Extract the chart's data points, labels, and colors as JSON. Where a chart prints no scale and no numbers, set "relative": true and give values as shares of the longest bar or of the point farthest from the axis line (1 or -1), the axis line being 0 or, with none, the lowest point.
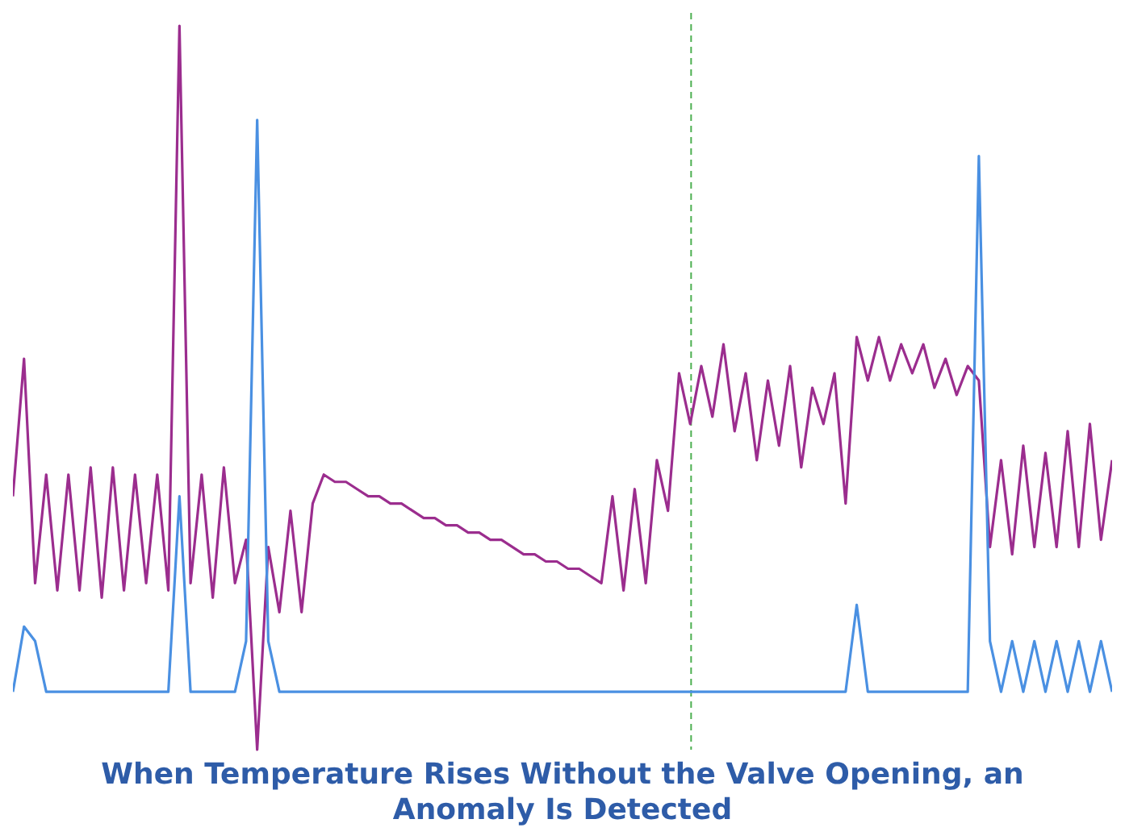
{
  "chart_data": {
    "type": "line",
    "relative": true,
    "title": "When Temperature Rises Without the Valve Opening, an Anomaly Is Detected",
    "categories": [
      null,
      null,
      null,
      null,
      null,
      null,
      null,
      null,
      null,
      null,
      null,
      null,
      null,
      null,
      null,
      null,
      null,
      null,
      null,
      null,
      null,
      null,
      null,
      null,
      null,
      null,
      null,
      null,
      null,
      null,
      null,
      null,
      null,
      null,
      null,
      null,
      null,
      null,
      null,
      null,
      null,
      null,
      null,
      null,
      null,
      null,
      null,
      null,
      null,
      null,
      null,
      null,
      null,
      null,
      null,
      null,
      null,
      null,
      null,
      null,
      null,
      null,
      null,
      null,
      null,
      null,
      null,
      null,
      null,
      null,
      null,
      null,
      null,
      null,
      null,
      null,
      null,
      null,
      null,
      null,
      null,
      null,
      null,
      null,
      null,
      null,
      null,
      null,
      null,
      null,
      null,
      null,
      null,
      null,
      null,
      null,
      null,
      null,
      null,
      null
    ],
    "series": [
      {
        "color": "#9b2d8e",
        "values": [
          0.35,
          0.54,
          0.23,
          0.38,
          0.22,
          0.38,
          0.22,
          0.39,
          0.21,
          0.39,
          0.22,
          0.38,
          0.23,
          0.38,
          0.22,
          1,
          0.23,
          0.38,
          0.21,
          0.39,
          0.23,
          0.29,
          0,
          0.28,
          0.19,
          0.33,
          0.19,
          0.34,
          0.38,
          0.37,
          0.37,
          0.36,
          0.35,
          0.35,
          0.34,
          0.34,
          0.33,
          0.32,
          0.32,
          0.31,
          0.31,
          0.3,
          0.3,
          0.29,
          0.29,
          0.28,
          0.27,
          0.27,
          0.26,
          0.26,
          0.25,
          0.25,
          0.24,
          0.23,
          0.35,
          0.22,
          0.36,
          0.23,
          0.4,
          0.33,
          0.52,
          0.45,
          0.53,
          0.46,
          0.56,
          0.44,
          0.52,
          0.4,
          0.51,
          0.42,
          0.53,
          0.39,
          0.5,
          0.45,
          0.52,
          0.34,
          0.57,
          0.51,
          0.57,
          0.51,
          0.56,
          0.52,
          0.56,
          0.5,
          0.54,
          0.49,
          0.53,
          0.51,
          0.28,
          0.4,
          0.27,
          0.42,
          0.28,
          0.41,
          0.28,
          0.44,
          0.28,
          0.45,
          0.29,
          0.4
        ]
      },
      {
        "color": "#4a90e2",
        "values": [
          0.08,
          0.17,
          0.15,
          0.08,
          0.08,
          0.08,
          0.08,
          0.08,
          0.08,
          0.08,
          0.08,
          0.08,
          0.08,
          0.08,
          0.08,
          0.35,
          0.08,
          0.08,
          0.08,
          0.08,
          0.08,
          0.15,
          0.87,
          0.15,
          0.08,
          0.08,
          0.08,
          0.08,
          0.08,
          0.08,
          0.08,
          0.08,
          0.08,
          0.08,
          0.08,
          0.08,
          0.08,
          0.08,
          0.08,
          0.08,
          0.08,
          0.08,
          0.08,
          0.08,
          0.08,
          0.08,
          0.08,
          0.08,
          0.08,
          0.08,
          0.08,
          0.08,
          0.08,
          0.08,
          0.08,
          0.08,
          0.08,
          0.08,
          0.08,
          0.08,
          0.08,
          0.08,
          0.08,
          0.08,
          0.08,
          0.08,
          0.08,
          0.08,
          0.08,
          0.08,
          0.08,
          0.08,
          0.08,
          0.08,
          0.08,
          0.08,
          0.2,
          0.08,
          0.08,
          0.08,
          0.08,
          0.08,
          0.08,
          0.08,
          0.08,
          0.08,
          0.08,
          0.82,
          0.15,
          0.08,
          0.15,
          0.08,
          0.15,
          0.08,
          0.15,
          0.08,
          0.15,
          0.08,
          0.15,
          0.08
        ]
      }
    ]
  }
}
